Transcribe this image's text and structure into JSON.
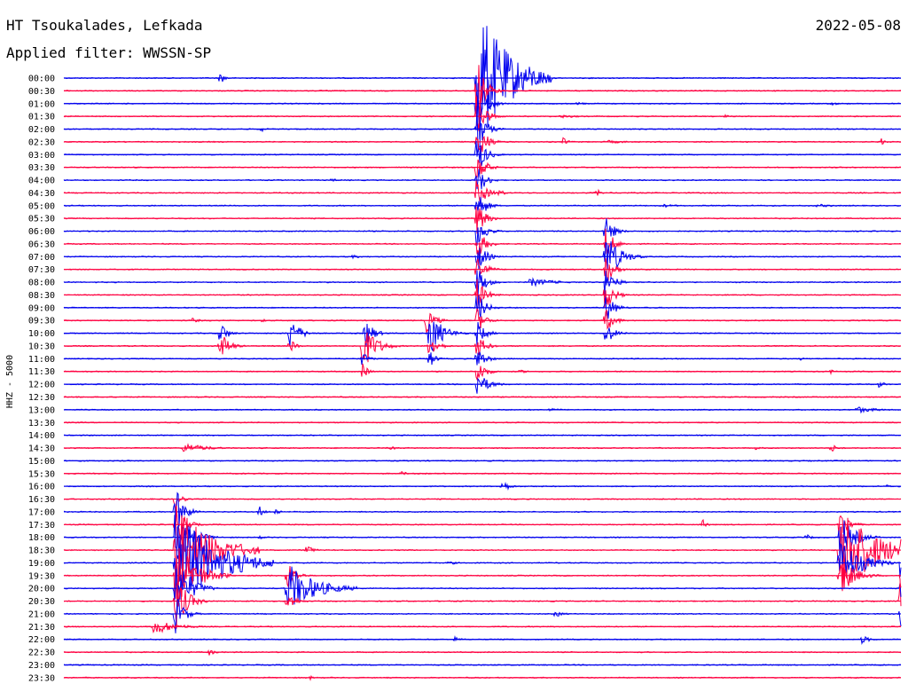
{
  "header": {
    "station": "HT Tsoukalades, Lefkada",
    "filter": "Applied filter: WWSSN-SP",
    "date": "2022-05-08",
    "channel": "HHZ - 5000"
  },
  "chart_data": {
    "type": "line",
    "title": "HT Tsoukalades, Lefkada",
    "subtitle": "Applied filter: WWSSN-SP",
    "date": "2022-05-08",
    "ylabel": "HHZ - 5000",
    "xlabel": "",
    "x_unit": "minutes",
    "xlim": [
      0,
      30
    ],
    "grid": false,
    "colors": {
      "a": "#0000ee",
      "b": "#ff0040"
    },
    "traces": [
      {
        "label": "00:00",
        "color": "a",
        "events": [
          {
            "x": 5.6,
            "amp": 7,
            "dur": 0.4
          },
          {
            "x": 14.8,
            "amp": 90,
            "dur": 2.2
          }
        ]
      },
      {
        "label": "00:30",
        "color": "b",
        "events": [
          {
            "x": 14.8,
            "amp": 40,
            "dur": 0.6
          }
        ]
      },
      {
        "label": "01:00",
        "color": "a",
        "events": [
          {
            "x": 14.8,
            "amp": 40,
            "dur": 0.6
          },
          {
            "x": 18.4,
            "amp": 2,
            "dur": 0.8
          },
          {
            "x": 27.5,
            "amp": 2,
            "dur": 0.8
          }
        ]
      },
      {
        "label": "01:30",
        "color": "b",
        "events": [
          {
            "x": 14.8,
            "amp": 30,
            "dur": 0.6
          },
          {
            "x": 17.8,
            "amp": 2,
            "dur": 1.5
          },
          {
            "x": 23.7,
            "amp": 2,
            "dur": 0.4
          }
        ]
      },
      {
        "label": "02:00",
        "color": "a",
        "events": [
          {
            "x": 7.1,
            "amp": 4,
            "dur": 0.3
          },
          {
            "x": 14.8,
            "amp": 30,
            "dur": 0.6
          }
        ]
      },
      {
        "label": "02:30",
        "color": "b",
        "events": [
          {
            "x": 14.8,
            "amp": 30,
            "dur": 0.6
          },
          {
            "x": 17.9,
            "amp": 5,
            "dur": 0.4
          },
          {
            "x": 19.5,
            "amp": 2,
            "dur": 1.8
          },
          {
            "x": 29.3,
            "amp": 4,
            "dur": 0.4
          }
        ]
      },
      {
        "label": "03:00",
        "color": "a",
        "events": [
          {
            "x": 14.8,
            "amp": 25,
            "dur": 0.6
          }
        ]
      },
      {
        "label": "03:30",
        "color": "b",
        "events": [
          {
            "x": 14.8,
            "amp": 20,
            "dur": 0.6
          }
        ]
      },
      {
        "label": "04:00",
        "color": "a",
        "events": [
          {
            "x": 9.6,
            "amp": 2,
            "dur": 0.6
          },
          {
            "x": 14.8,
            "amp": 20,
            "dur": 0.6
          }
        ]
      },
      {
        "label": "04:30",
        "color": "b",
        "events": [
          {
            "x": 14.8,
            "amp": 20,
            "dur": 0.6
          },
          {
            "x": 15.6,
            "amp": 5,
            "dur": 0.4
          },
          {
            "x": 19.1,
            "amp": 5,
            "dur": 0.3
          }
        ]
      },
      {
        "label": "05:00",
        "color": "a",
        "events": [
          {
            "x": 14.8,
            "amp": 20,
            "dur": 0.6
          },
          {
            "x": 21.5,
            "amp": 2,
            "dur": 1.2
          },
          {
            "x": 27.0,
            "amp": 2,
            "dur": 1.5
          }
        ]
      },
      {
        "label": "05:30",
        "color": "b",
        "events": [
          {
            "x": 14.8,
            "amp": 20,
            "dur": 0.6
          }
        ]
      },
      {
        "label": "06:00",
        "color": "a",
        "events": [
          {
            "x": 14.8,
            "amp": 20,
            "dur": 0.6
          },
          {
            "x": 19.4,
            "amp": 18,
            "dur": 0.6
          }
        ]
      },
      {
        "label": "06:30",
        "color": "b",
        "events": [
          {
            "x": 14.8,
            "amp": 20,
            "dur": 0.6
          },
          {
            "x": 19.4,
            "amp": 20,
            "dur": 0.6
          }
        ]
      },
      {
        "label": "07:00",
        "color": "a",
        "events": [
          {
            "x": 10.3,
            "amp": 2,
            "dur": 1.0
          },
          {
            "x": 14.8,
            "amp": 20,
            "dur": 0.6
          },
          {
            "x": 19.4,
            "amp": 30,
            "dur": 1.0
          }
        ]
      },
      {
        "label": "07:30",
        "color": "b",
        "events": [
          {
            "x": 14.8,
            "amp": 20,
            "dur": 0.6
          },
          {
            "x": 19.4,
            "amp": 20,
            "dur": 0.6
          }
        ]
      },
      {
        "label": "08:00",
        "color": "a",
        "events": [
          {
            "x": 14.8,
            "amp": 20,
            "dur": 0.6
          },
          {
            "x": 16.7,
            "amp": 5,
            "dur": 1.8
          },
          {
            "x": 19.4,
            "amp": 20,
            "dur": 0.6
          }
        ]
      },
      {
        "label": "08:30",
        "color": "b",
        "events": [
          {
            "x": 14.8,
            "amp": 20,
            "dur": 0.6
          },
          {
            "x": 19.4,
            "amp": 20,
            "dur": 0.6
          }
        ]
      },
      {
        "label": "09:00",
        "color": "a",
        "events": [
          {
            "x": 14.8,
            "amp": 20,
            "dur": 0.6
          },
          {
            "x": 19.4,
            "amp": 20,
            "dur": 0.6
          }
        ]
      },
      {
        "label": "09:30",
        "color": "b",
        "events": [
          {
            "x": 4.6,
            "amp": 3,
            "dur": 0.6
          },
          {
            "x": 7.1,
            "amp": 2,
            "dur": 0.4
          },
          {
            "x": 13.0,
            "amp": 15,
            "dur": 0.6
          },
          {
            "x": 14.8,
            "amp": 15,
            "dur": 0.6
          },
          {
            "x": 19.4,
            "amp": 15,
            "dur": 0.6
          }
        ]
      },
      {
        "label": "10:00",
        "color": "a",
        "events": [
          {
            "x": 5.6,
            "amp": 15,
            "dur": 0.5
          },
          {
            "x": 8.1,
            "amp": 20,
            "dur": 0.7
          },
          {
            "x": 10.8,
            "amp": 18,
            "dur": 0.6
          },
          {
            "x": 13.1,
            "amp": 28,
            "dur": 0.9
          },
          {
            "x": 14.8,
            "amp": 15,
            "dur": 0.6
          },
          {
            "x": 19.4,
            "amp": 15,
            "dur": 0.6
          }
        ]
      },
      {
        "label": "10:30",
        "color": "b",
        "events": [
          {
            "x": 5.6,
            "amp": 20,
            "dur": 0.6
          },
          {
            "x": 8.1,
            "amp": 10,
            "dur": 0.4
          },
          {
            "x": 10.7,
            "amp": 30,
            "dur": 0.9
          },
          {
            "x": 13.1,
            "amp": 15,
            "dur": 0.6
          },
          {
            "x": 14.8,
            "amp": 15,
            "dur": 0.6
          }
        ]
      },
      {
        "label": "11:00",
        "color": "a",
        "events": [
          {
            "x": 10.7,
            "amp": 10,
            "dur": 0.4
          },
          {
            "x": 13.1,
            "amp": 12,
            "dur": 0.4
          },
          {
            "x": 14.8,
            "amp": 15,
            "dur": 0.6
          },
          {
            "x": 26.4,
            "amp": 2,
            "dur": 0.3
          }
        ]
      },
      {
        "label": "11:30",
        "color": "b",
        "events": [
          {
            "x": 10.7,
            "amp": 10,
            "dur": 0.4
          },
          {
            "x": 14.8,
            "amp": 15,
            "dur": 0.6
          },
          {
            "x": 16.3,
            "amp": 2,
            "dur": 1.0
          },
          {
            "x": 27.5,
            "amp": 3,
            "dur": 0.3
          }
        ]
      },
      {
        "label": "12:00",
        "color": "a",
        "events": [
          {
            "x": 14.8,
            "amp": 15,
            "dur": 0.8
          },
          {
            "x": 29.2,
            "amp": 4,
            "dur": 0.5
          }
        ]
      },
      {
        "label": "12:30",
        "color": "b",
        "events": []
      },
      {
        "label": "13:00",
        "color": "a",
        "events": [
          {
            "x": 17.4,
            "amp": 2,
            "dur": 1.0
          },
          {
            "x": 28.4,
            "amp": 4,
            "dur": 1.5
          }
        ]
      },
      {
        "label": "13:30",
        "color": "b",
        "events": []
      },
      {
        "label": "14:00",
        "color": "a",
        "events": []
      },
      {
        "label": "14:30",
        "color": "b",
        "events": [
          {
            "x": 4.3,
            "amp": 6,
            "dur": 1.6
          },
          {
            "x": 11.7,
            "amp": 2,
            "dur": 0.8
          },
          {
            "x": 24.8,
            "amp": 2,
            "dur": 0.6
          },
          {
            "x": 27.5,
            "amp": 5,
            "dur": 0.5
          }
        ]
      },
      {
        "label": "15:00",
        "color": "a",
        "events": []
      },
      {
        "label": "15:30",
        "color": "b",
        "events": [
          {
            "x": 12.1,
            "amp": 3,
            "dur": 0.4
          }
        ]
      },
      {
        "label": "16:00",
        "color": "a",
        "events": [
          {
            "x": 15.7,
            "amp": 8,
            "dur": 0.5
          },
          {
            "x": 29.5,
            "amp": 2,
            "dur": 0.4
          }
        ]
      },
      {
        "label": "16:30",
        "color": "b",
        "events": [
          {
            "x": 4.0,
            "amp": 15,
            "dur": 0.4
          }
        ]
      },
      {
        "label": "17:00",
        "color": "a",
        "events": [
          {
            "x": 4.0,
            "amp": 30,
            "dur": 0.6
          },
          {
            "x": 7.0,
            "amp": 7,
            "dur": 0.4
          },
          {
            "x": 7.6,
            "amp": 5,
            "dur": 0.3
          }
        ]
      },
      {
        "label": "17:30",
        "color": "b",
        "events": [
          {
            "x": 4.0,
            "amp": 30,
            "dur": 0.6
          },
          {
            "x": 22.9,
            "amp": 6,
            "dur": 0.3
          },
          {
            "x": 27.8,
            "amp": 20,
            "dur": 0.6
          }
        ]
      },
      {
        "label": "18:00",
        "color": "a",
        "events": [
          {
            "x": 4.0,
            "amp": 40,
            "dur": 1.0
          },
          {
            "x": 7.0,
            "amp": 2,
            "dur": 0.6
          },
          {
            "x": 26.6,
            "amp": 4,
            "dur": 0.4
          },
          {
            "x": 27.8,
            "amp": 28,
            "dur": 1.0
          }
        ]
      },
      {
        "label": "18:30",
        "color": "b",
        "events": [
          {
            "x": 4.0,
            "amp": 55,
            "dur": 2.5
          },
          {
            "x": 8.7,
            "amp": 8,
            "dur": 0.4
          },
          {
            "x": 27.8,
            "amp": 55,
            "dur": 2.5
          },
          {
            "x": 30.0,
            "amp": 35,
            "dur": 0.6
          }
        ]
      },
      {
        "label": "19:00",
        "color": "a",
        "events": [
          {
            "x": 4.0,
            "amp": 60,
            "dur": 3.0
          },
          {
            "x": 13.8,
            "amp": 3,
            "dur": 0.5
          },
          {
            "x": 27.8,
            "amp": 30,
            "dur": 1.5
          },
          {
            "x": 30.0,
            "amp": 30,
            "dur": 0.6
          }
        ]
      },
      {
        "label": "19:30",
        "color": "b",
        "events": [
          {
            "x": 4.0,
            "amp": 40,
            "dur": 1.5
          },
          {
            "x": 8.0,
            "amp": 18,
            "dur": 0.6
          },
          {
            "x": 27.8,
            "amp": 25,
            "dur": 1.0
          },
          {
            "x": 30.0,
            "amp": 55,
            "dur": 2.5
          }
        ]
      },
      {
        "label": "20:00",
        "color": "a",
        "events": [
          {
            "x": 4.0,
            "amp": 40,
            "dur": 1.0
          },
          {
            "x": 8.0,
            "amp": 30,
            "dur": 2.0
          },
          {
            "x": 30.0,
            "amp": 30,
            "dur": 1.5
          }
        ]
      },
      {
        "label": "20:30",
        "color": "b",
        "events": [
          {
            "x": 4.0,
            "amp": 35,
            "dur": 0.8
          },
          {
            "x": 8.0,
            "amp": 12,
            "dur": 0.6
          },
          {
            "x": 30.0,
            "amp": 35,
            "dur": 1.0
          }
        ]
      },
      {
        "label": "21:00",
        "color": "a",
        "events": [
          {
            "x": 4.0,
            "amp": 25,
            "dur": 0.6
          },
          {
            "x": 17.6,
            "amp": 4,
            "dur": 0.6
          },
          {
            "x": 30.0,
            "amp": 15,
            "dur": 0.6
          }
        ]
      },
      {
        "label": "21:30",
        "color": "b",
        "events": [
          {
            "x": 3.2,
            "amp": 10,
            "dur": 1.5
          }
        ]
      },
      {
        "label": "22:00",
        "color": "a",
        "events": [
          {
            "x": 14.0,
            "amp": 3,
            "dur": 0.5
          },
          {
            "x": 28.6,
            "amp": 5,
            "dur": 0.6
          }
        ]
      },
      {
        "label": "22:30",
        "color": "b",
        "events": [
          {
            "x": 5.2,
            "amp": 4,
            "dur": 0.5
          }
        ]
      },
      {
        "label": "23:00",
        "color": "a",
        "events": []
      },
      {
        "label": "23:30",
        "color": "b",
        "events": [
          {
            "x": 8.8,
            "amp": 3,
            "dur": 0.3
          }
        ]
      }
    ]
  }
}
